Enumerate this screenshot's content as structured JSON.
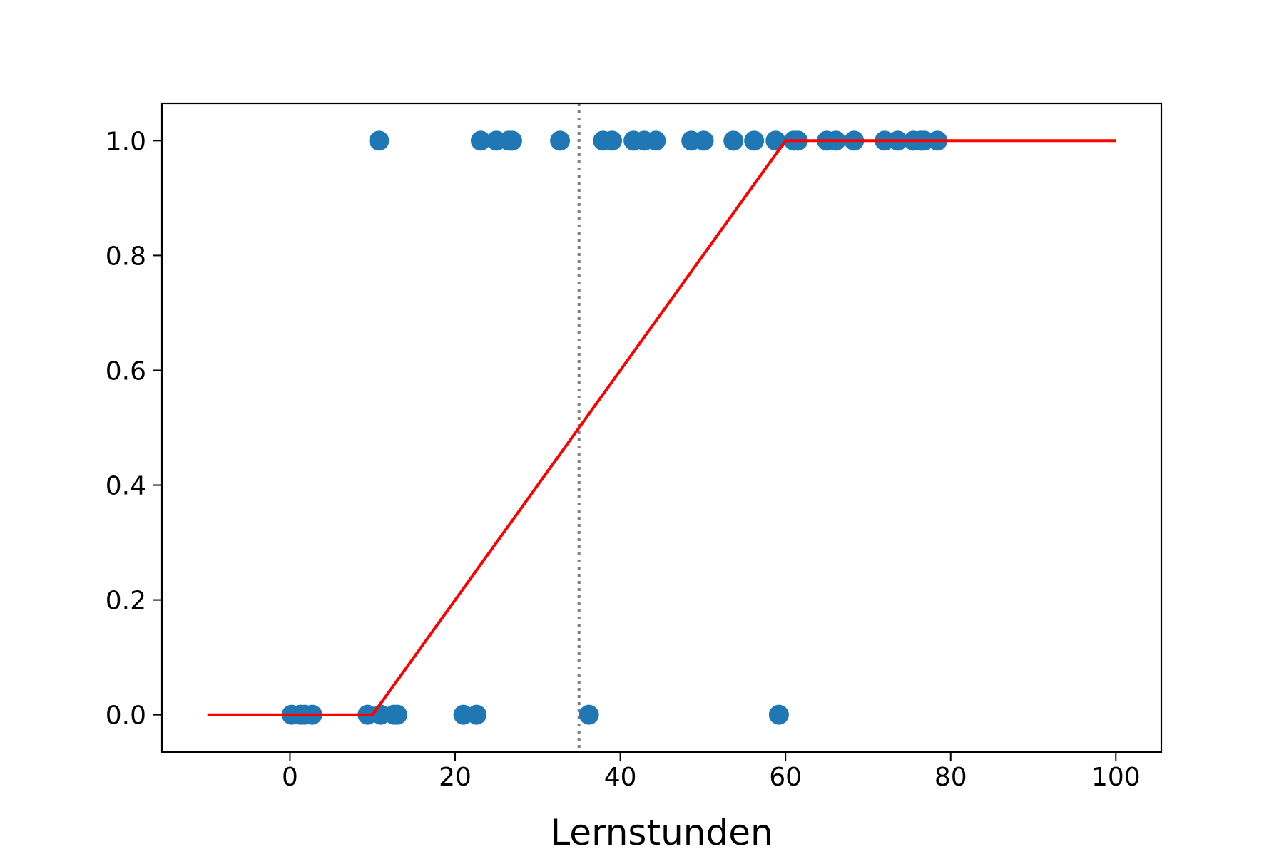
{
  "chart_data": {
    "type": "scatter",
    "title": "",
    "xlabel": "Lernstunden",
    "ylabel": "",
    "xlim": [
      -15.5,
      105.5
    ],
    "ylim": [
      -0.065,
      1.065
    ],
    "xticks": [
      0,
      20,
      40,
      60,
      80,
      100
    ],
    "xtick_labels": [
      "0",
      "20",
      "40",
      "60",
      "80",
      "100"
    ],
    "yticks": [
      0.0,
      0.2,
      0.4,
      0.6,
      0.8,
      1.0
    ],
    "ytick_labels": [
      "0.0",
      "0.2",
      "0.4",
      "0.6",
      "0.8",
      "1.0"
    ],
    "grid": false,
    "legend": "none",
    "points": {
      "color": "#1f77b4",
      "x": [
        0.2,
        1.3,
        1.8,
        2.7,
        9.4,
        11.0,
        12.6,
        13.0,
        21.0,
        22.6,
        36.2,
        59.2,
        10.8,
        23.1,
        25.0,
        26.5,
        26.9,
        32.7,
        37.9,
        39.0,
        41.6,
        42.9,
        44.3,
        48.6,
        50.1,
        53.7,
        56.2,
        58.8,
        61.0,
        61.5,
        65.0,
        66.1,
        68.3,
        72.0,
        73.6,
        75.5,
        76.4,
        76.8,
        78.4
      ],
      "y": [
        0,
        0,
        0,
        0,
        0,
        0,
        0,
        0,
        0,
        0,
        0,
        0,
        1,
        1,
        1,
        1,
        1,
        1,
        1,
        1,
        1,
        1,
        1,
        1,
        1,
        1,
        1,
        1,
        1,
        1,
        1,
        1,
        1,
        1,
        1,
        1,
        1,
        1,
        1
      ]
    },
    "fit_line": {
      "color": "#ff0000",
      "x": [
        -10,
        10,
        60,
        100
      ],
      "y": [
        0,
        0,
        1,
        1
      ]
    },
    "threshold_line": {
      "color": "#808080",
      "style": "dotted",
      "x": 35
    }
  }
}
